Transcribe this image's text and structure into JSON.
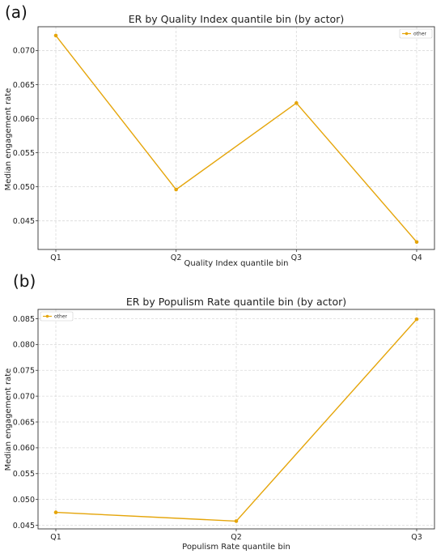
{
  "chart_data": [
    {
      "panel_label": "(a)",
      "type": "line",
      "title": "ER by Quality Index quantile bin (by actor)",
      "xlabel": "Quality Index quantile bin",
      "ylabel": "Median engagement rate",
      "categories": [
        "Q1",
        "Q2",
        "Q3",
        "Q4"
      ],
      "series": [
        {
          "name": "other",
          "values": [
            0.0722,
            0.0496,
            0.0623,
            0.0419
          ]
        }
      ],
      "ylim": [
        0.0408,
        0.0735
      ],
      "yticks": [
        0.045,
        0.05,
        0.055,
        0.06,
        0.065,
        0.07
      ],
      "ytick_labels": [
        "0.045",
        "0.050",
        "0.055",
        "0.060",
        "0.065",
        "0.070"
      ],
      "grid": true,
      "legend_position": "top-right",
      "color": "#e5a50a"
    },
    {
      "panel_label": "(b)",
      "type": "line",
      "title": "ER by Populism Rate quantile bin (by actor)",
      "xlabel": "Populism Rate quantile bin",
      "ylabel": "Median engagement rate",
      "categories": [
        "Q1",
        "Q2",
        "Q3"
      ],
      "series": [
        {
          "name": "other",
          "values": [
            0.0475,
            0.0458,
            0.0849
          ]
        }
      ],
      "ylim": [
        0.0443,
        0.0868
      ],
      "yticks": [
        0.045,
        0.05,
        0.055,
        0.06,
        0.065,
        0.07,
        0.075,
        0.08,
        0.085
      ],
      "ytick_labels": [
        "0.045",
        "0.050",
        "0.055",
        "0.060",
        "0.065",
        "0.070",
        "0.075",
        "0.080",
        "0.085"
      ],
      "grid": true,
      "legend_position": "top-left",
      "color": "#e5a50a"
    }
  ]
}
